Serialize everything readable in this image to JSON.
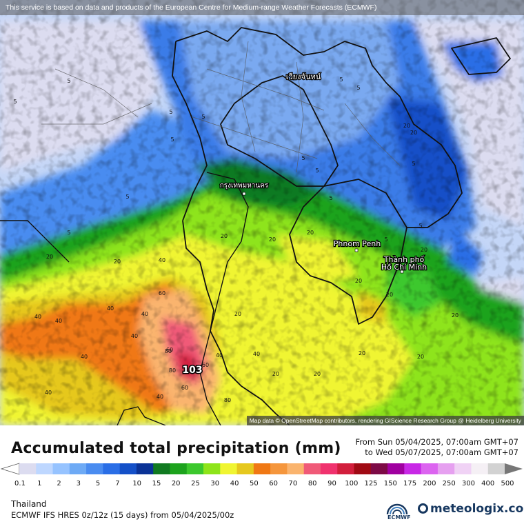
{
  "disclaimer": "This service is based on data and products of the European Centre for Medium-range Weather Forecasts (ECMWF)",
  "attribution": "Map data © OpenStreetMap contributors, rendering GIScience Research Group @ Heidelberg University",
  "title": "Accumulated total precipitation (mm)",
  "period": {
    "from": "From Sun 05/04/2025, 07:00am GMT+07",
    "to": "to Wed 05/07/2025, 07:00am GMT+07"
  },
  "region": "Thailand",
  "model": "ECMWF IFS HRES 0z/12z (15 days) from  05/04/2025/00z",
  "logos": {
    "ecmwf": "ECMWF",
    "ecmwf_icon": "ecmwf-logo-icon",
    "meteologix": "meteologix.com",
    "meteologix_icon": "meteologix-logo-icon"
  },
  "cities": {
    "vientiane": "เวียงจันทน์",
    "bangkok": "กรุงเทพมหานคร",
    "phnom_penh": "Phnom Penh",
    "hcmc_line1": "Thành phố",
    "hcmc_line2": "Hồ Chí Minh"
  },
  "max_value": "103",
  "contour_labels": [
    "5",
    "5",
    "5",
    "5",
    "5",
    "5",
    "5",
    "5",
    "5",
    "5",
    "5",
    "5",
    "5",
    "5",
    "5",
    "20",
    "20",
    "20",
    "20",
    "20",
    "20",
    "20",
    "20",
    "20",
    "20",
    "20",
    "20",
    "20",
    "20",
    "20",
    "40",
    "40",
    "40",
    "40",
    "40",
    "40",
    "40",
    "40",
    "40",
    "40",
    "60",
    "60",
    "60",
    "60",
    "80",
    "80",
    "80",
    "20",
    "40"
  ],
  "legend": {
    "values": [
      "0.1",
      "1",
      "2",
      "3",
      "5",
      "7",
      "10",
      "15",
      "20",
      "25",
      "30",
      "40",
      "50",
      "60",
      "70",
      "80",
      "90",
      "100",
      "125",
      "150",
      "175",
      "200",
      "250",
      "300",
      "400",
      "500"
    ],
    "colors": [
      "#dcdcf0",
      "#bed7ff",
      "#96c3ff",
      "#6eaaf5",
      "#4a8cf0",
      "#2a6ee6",
      "#1450c8",
      "#0a3296",
      "#117a21",
      "#1da31d",
      "#3cc82d",
      "#8ee41a",
      "#f0f532",
      "#e6c81e",
      "#f07814",
      "#f5963c",
      "#fab46e",
      "#f05a78",
      "#f0326e",
      "#d21e3c",
      "#a00a14",
      "#7d0a46",
      "#a000a0",
      "#c828e6",
      "#dc64f0",
      "#e6a0f0",
      "#f0d2f5",
      "#f5f0f5",
      "#d2d2d2"
    ]
  }
}
